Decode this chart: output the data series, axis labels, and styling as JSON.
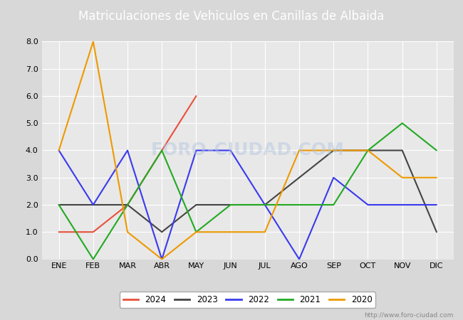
{
  "title": "Matriculaciones de Vehiculos en Canillas de Albaida",
  "months": [
    "ENE",
    "FEB",
    "MAR",
    "ABR",
    "MAY",
    "JUN",
    "JUL",
    "AGO",
    "SEP",
    "OCT",
    "NOV",
    "DIC"
  ],
  "series": [
    {
      "year": "2024",
      "values": [
        1,
        1,
        2,
        4,
        6,
        null,
        null,
        null,
        null,
        null,
        null,
        null
      ],
      "color": "#e8503a",
      "label": "2024"
    },
    {
      "year": "2023",
      "values": [
        2,
        2,
        2,
        1,
        2,
        2,
        2,
        3,
        4,
        4,
        4,
        1
      ],
      "color": "#444444",
      "label": "2023"
    },
    {
      "year": "2022",
      "values": [
        4,
        2,
        4,
        0,
        4,
        4,
        2,
        0,
        3,
        2,
        2,
        2
      ],
      "color": "#3a3aee",
      "label": "2022"
    },
    {
      "year": "2021",
      "values": [
        2,
        0,
        2,
        4,
        1,
        2,
        2,
        2,
        2,
        4,
        5,
        4
      ],
      "color": "#22aa22",
      "label": "2021"
    },
    {
      "year": "2020",
      "values": [
        4,
        8,
        1,
        0,
        1,
        1,
        1,
        4,
        4,
        4,
        3,
        3
      ],
      "color": "#ee9900",
      "label": "2020"
    }
  ],
  "ylim": [
    0,
    8.0
  ],
  "yticks": [
    0.0,
    1.0,
    2.0,
    3.0,
    4.0,
    5.0,
    6.0,
    7.0,
    8.0
  ],
  "fig_bg_color": "#d8d8d8",
  "plot_bg_color": "#e8e8e8",
  "title_bg_color": "#4472c4",
  "title_color": "#ffffff",
  "watermark_plot": "FORO-CIUDAD.COM",
  "watermark_url": "http://www.foro-ciudad.com",
  "title_fontsize": 12,
  "tick_fontsize": 8,
  "legend_fontsize": 8.5,
  "grid_color": "#ffffff",
  "grid_linewidth": 0.8
}
